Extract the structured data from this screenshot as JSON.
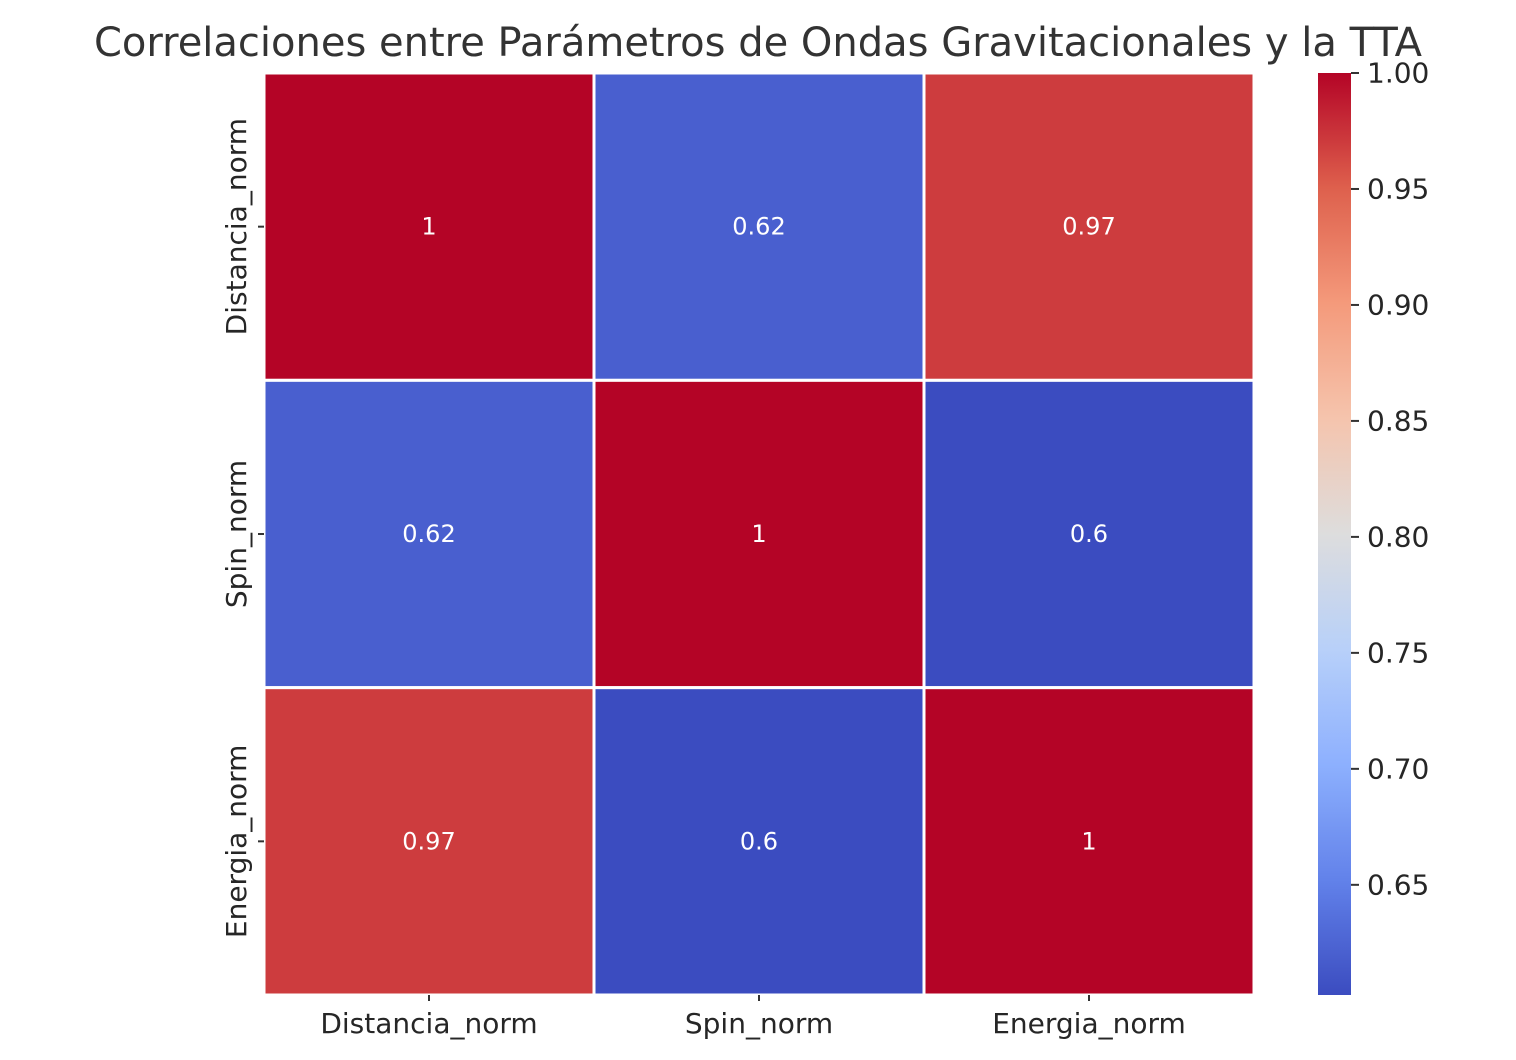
{
  "chart_data": {
    "type": "heatmap",
    "title": "Correlaciones entre Parámetros de Ondas Gravitacionales y la TTA",
    "x_labels": [
      "Distancia_norm",
      "Spin_norm",
      "Energia_norm"
    ],
    "y_labels": [
      "Distancia_norm",
      "Spin_norm",
      "Energia_norm"
    ],
    "values": [
      [
        1.0,
        0.62,
        0.97
      ],
      [
        0.62,
        1.0,
        0.6
      ],
      [
        0.97,
        0.6,
        1.0
      ]
    ],
    "cell_labels": [
      [
        "1",
        "0.62",
        "0.97"
      ],
      [
        "0.62",
        "1",
        "0.6"
      ],
      [
        "0.97",
        "0.6",
        "1"
      ]
    ],
    "colormap": "coolwarm",
    "colorbar": {
      "min": 0.6025,
      "max": 1.0,
      "ticks": [
        0.65,
        0.7,
        0.75,
        0.8,
        0.85,
        0.9,
        0.95,
        1.0
      ],
      "tick_labels": [
        "0.65",
        "0.70",
        "0.75",
        "0.80",
        "0.85",
        "0.90",
        "0.95",
        "1.00"
      ]
    },
    "grid_line_color": "#ffffff"
  }
}
